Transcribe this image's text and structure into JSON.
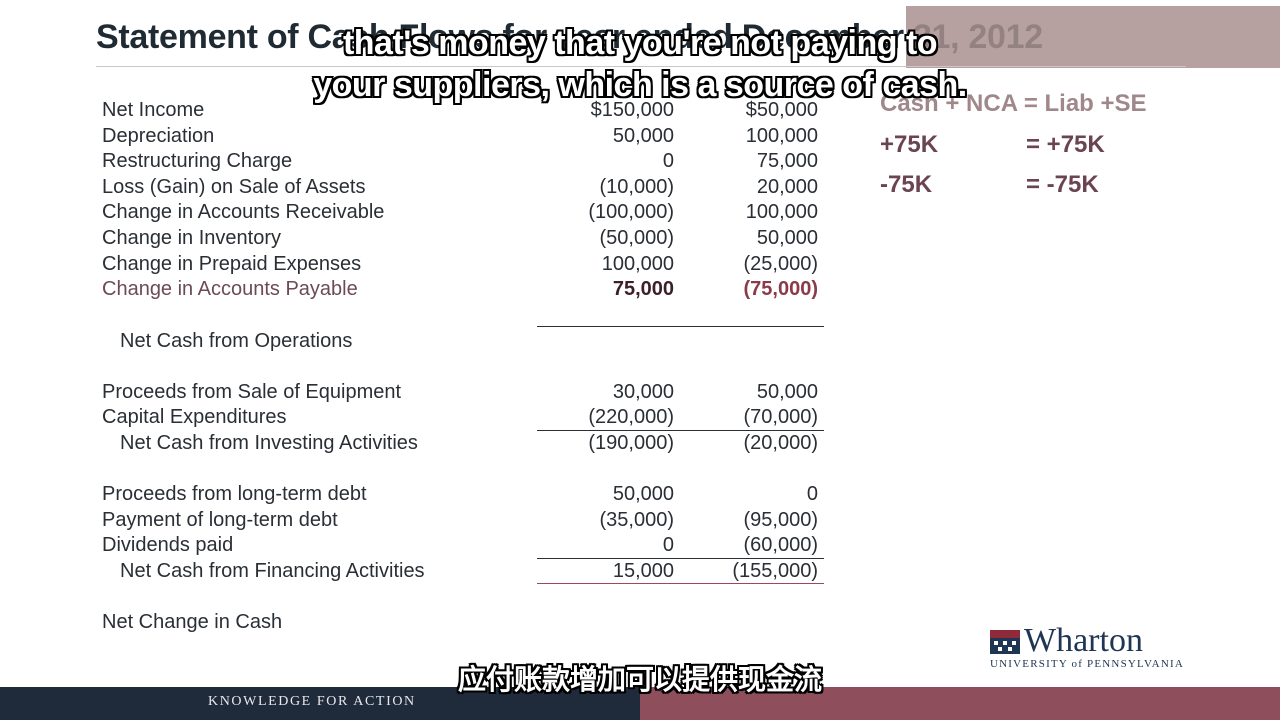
{
  "slide": {
    "title": "Statement of Cash Flows for year ended December 31, 2012"
  },
  "rows": [
    {
      "label": "Net Income",
      "v1": "$150,000",
      "v2": "$50,000"
    },
    {
      "label": "Depreciation",
      "v1": "50,000",
      "v2": "100,000"
    },
    {
      "label": "Restructuring Charge",
      "v1": "0",
      "v2": "75,000"
    },
    {
      "label": "Loss (Gain) on Sale of Assets",
      "v1": "(10,000)",
      "v2": "20,000"
    },
    {
      "label": "Change in Accounts Receivable",
      "v1": "(100,000)",
      "v2": "100,000"
    },
    {
      "label": "Change in Inventory",
      "v1": "(50,000)",
      "v2": "50,000"
    },
    {
      "label": "Change in Prepaid Expenses",
      "v1": "100,000",
      "v2": "(25,000)"
    },
    {
      "label": "Change in Accounts Payable",
      "v1": "75,000",
      "v2": "(75,000)"
    },
    {
      "label": "Net Cash from Operations",
      "v1": "",
      "v2": ""
    },
    {
      "label": "Proceeds from Sale of Equipment",
      "v1": "30,000",
      "v2": "50,000"
    },
    {
      "label": "Capital Expenditures",
      "v1": "(220,000)",
      "v2": "(70,000)"
    },
    {
      "label": "Net Cash from Investing Activities",
      "v1": "(190,000)",
      "v2": "(20,000)"
    },
    {
      "label": "Proceeds from long-term debt",
      "v1": "50,000",
      "v2": "0"
    },
    {
      "label": "Payment of long-term debt",
      "v1": "(35,000)",
      "v2": "(95,000)"
    },
    {
      "label": "Dividends paid",
      "v1": "0",
      "v2": "(60,000)"
    },
    {
      "label": "Net Cash from Financing Activities",
      "v1": "15,000",
      "v2": "(155,000)"
    },
    {
      "label": "Net Change in Cash",
      "v1": "",
      "v2": ""
    }
  ],
  "equation": {
    "header": "Cash + NCA = Liab +SE",
    "line1_left": "+75K",
    "line1_right": "=  +75K",
    "line2_left": "-75K",
    "line2_right": "=  -75K"
  },
  "logo": {
    "word": "Wharton",
    "sub": "UNIVERSITY of PENNSYLVANIA"
  },
  "footer": {
    "tagline": "KNOWLEDGE FOR ACTION"
  },
  "subtitles": {
    "en_line1": "that's money that you're not paying to",
    "en_line2": "your suppliers, which is a source of cash.",
    "zh": "应付账款增加可以提供现金流"
  },
  "colors": {
    "footer_navy": "#1f2a3a",
    "footer_maroon": "#8e4e5c",
    "highlight_text": "#6c4a57"
  }
}
